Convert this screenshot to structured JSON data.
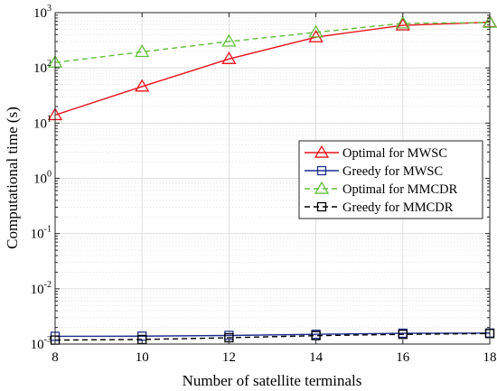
{
  "chart_data": {
    "type": "line",
    "title": "",
    "xlabel": "Number of satellite terminals",
    "ylabel": "Computational time (s)",
    "x": [
      8,
      10,
      12,
      14,
      16,
      18
    ],
    "xlim": [
      8,
      18
    ],
    "ylim": [
      0.001,
      1000
    ],
    "yscale": "log",
    "x_ticks": [
      "8",
      "10",
      "12",
      "14",
      "16",
      "18"
    ],
    "y_ticks": [
      {
        "base": "10",
        "exp": "-3"
      },
      {
        "base": "10",
        "exp": "-2"
      },
      {
        "base": "10",
        "exp": "-1"
      },
      {
        "base": "10",
        "exp": "0"
      },
      {
        "base": "10",
        "exp": "1"
      },
      {
        "base": "10",
        "exp": "2"
      },
      {
        "base": "10",
        "exp": "3"
      }
    ],
    "grid": true,
    "legend_position": "right",
    "series": [
      {
        "name": "Optimal for MWSC",
        "values": [
          14,
          46,
          145,
          360,
          590,
          670
        ],
        "color": "#e8141c",
        "line": "solid",
        "marker": "triangle"
      },
      {
        "name": "Greedy for MWSC",
        "values": [
          0.00138,
          0.00139,
          0.00143,
          0.0015,
          0.00157,
          0.00158
        ],
        "color": "#1f2f8f",
        "line": "solid",
        "marker": "square"
      },
      {
        "name": "Optimal for MMCDR",
        "values": [
          125,
          195,
          300,
          440,
          640,
          660
        ],
        "color": "#5fbf3a",
        "line": "dashed",
        "marker": "triangle"
      },
      {
        "name": "Greedy for MMCDR",
        "values": [
          0.00118,
          0.00121,
          0.0013,
          0.00142,
          0.0015,
          0.00155
        ],
        "color": "#000000",
        "line": "dashed",
        "marker": "square"
      }
    ]
  }
}
